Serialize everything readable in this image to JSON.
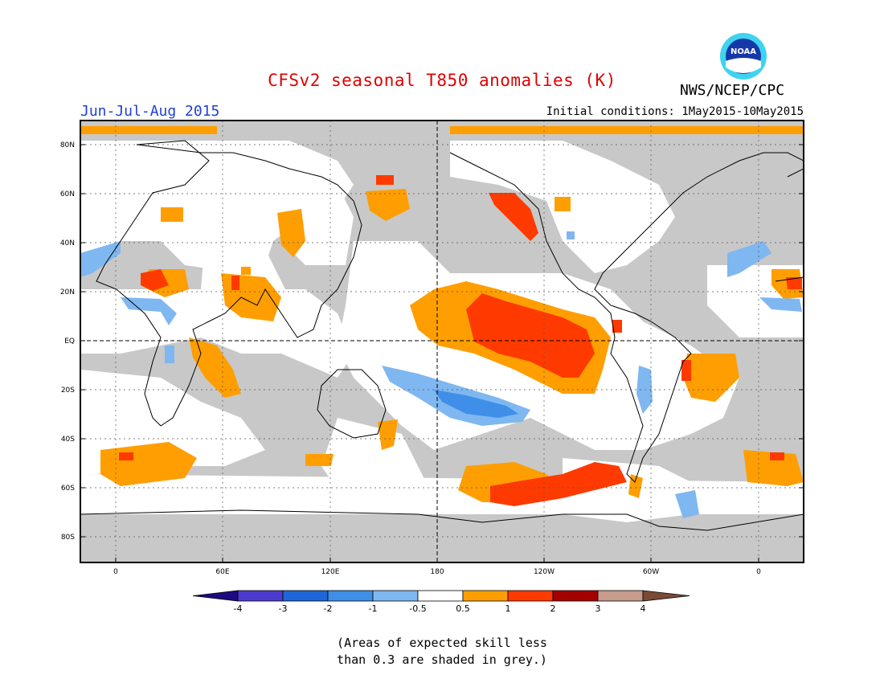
{
  "title": "CFSv2 seasonal T850 anomalies (K)",
  "period": "Jun-Jul-Aug 2015",
  "initial_conditions": "Initial conditions: 1May2015-10May2015",
  "agency": "NWS/NCEP/CPC",
  "logo_text": "NOAA",
  "note_line1": "(Areas of expected skill less",
  "note_line2": "than 0.3 are shaded in grey.)",
  "lat_ticks": [
    "80N",
    "60N",
    "40N",
    "20N",
    "EQ",
    "20S",
    "40S",
    "60S",
    "80S"
  ],
  "lon_ticks": [
    "0",
    "60E",
    "120E",
    "180",
    "120W",
    "60W",
    "0"
  ],
  "colorbar": {
    "labels": [
      "-4",
      "-3",
      "-2",
      "-1",
      "-0.5",
      "0.5",
      "1",
      "2",
      "3",
      "4"
    ],
    "colors": [
      "#1e0a80",
      "#4b3ccf",
      "#1f66d8",
      "#3f8fe8",
      "#7fb7f0",
      "#ffffff",
      "#ff9e00",
      "#ff3a00",
      "#a50000",
      "#c79c8c",
      "#7b4a36"
    ]
  },
  "colors": {
    "grey": "#c8c8c8",
    "warm1": "#ff9e00",
    "warm2": "#ff3a00",
    "cool1": "#7fb7f0",
    "cool2": "#3f8fe8",
    "title": "#e00000",
    "period": "#1f3fd8"
  }
}
